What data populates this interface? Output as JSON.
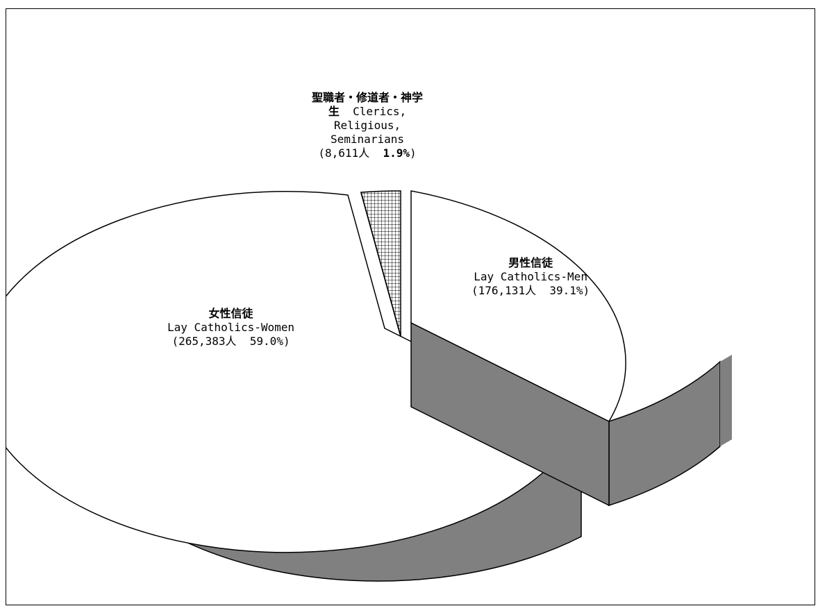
{
  "chart_data": {
    "type": "pie",
    "style": "3d-exploded",
    "title": "",
    "slices": [
      {
        "key": "men",
        "name_jp": "男性信徒",
        "name_en": "Lay Catholics-Men",
        "count_label": "176,131人",
        "percent_label": "39.1%",
        "value": 176131,
        "percent": 39.1,
        "fill": "#ffffff",
        "side_fill": "#808080",
        "pattern": "none"
      },
      {
        "key": "women",
        "name_jp": "女性信徒",
        "name_en": "Lay Catholics-Women",
        "count_label": "265,383人",
        "percent_label": "59.0%",
        "value": 265383,
        "percent": 59.0,
        "fill": "#ffffff",
        "side_fill": "#808080",
        "pattern": "none"
      },
      {
        "key": "clerics",
        "name_jp_line1": "聖職者・修道者・神学",
        "name_jp_line2": "生",
        "name_en_line1": "Clerics,",
        "name_en_line2": "Religious,",
        "name_en_line3": "Seminarians",
        "count_label": "8,611人",
        "percent_label": "1.9%",
        "value": 8611,
        "percent": 1.9,
        "fill": "#ffffff",
        "side_fill": "#808080",
        "pattern": "crosshatch"
      }
    ],
    "legend": "none"
  }
}
